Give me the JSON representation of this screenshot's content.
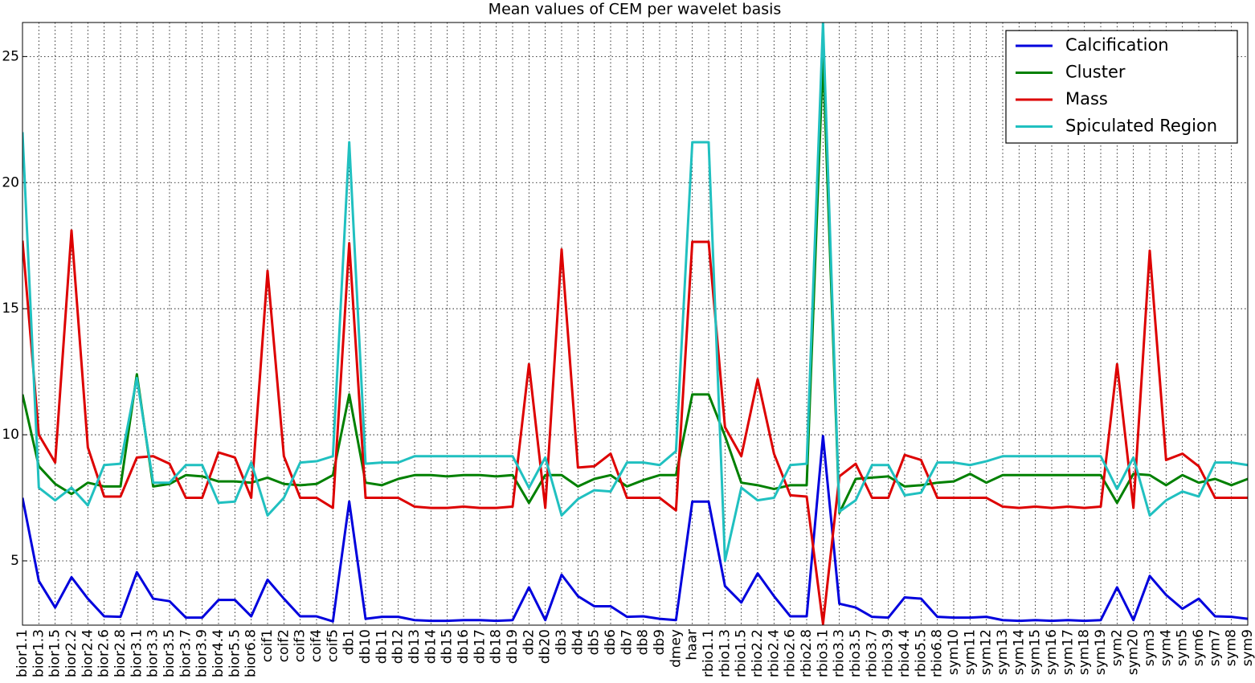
{
  "chart_data": {
    "type": "line",
    "title": "Mean values of CEM per wavelet basis",
    "categories": [
      "bior1.1",
      "bior1.3",
      "bior1.5",
      "bior2.2",
      "bior2.4",
      "bior2.6",
      "bior2.8",
      "bior3.1",
      "bior3.3",
      "bior3.5",
      "bior3.7",
      "bior3.9",
      "bior4.4",
      "bior5.5",
      "bior6.8",
      "coif1",
      "coif2",
      "coif3",
      "coif4",
      "coif5",
      "db1",
      "db10",
      "db11",
      "db12",
      "db13",
      "db14",
      "db15",
      "db16",
      "db17",
      "db18",
      "db19",
      "db2",
      "db20",
      "db3",
      "db4",
      "db5",
      "db6",
      "db7",
      "db8",
      "db9",
      "dmey",
      "haar",
      "rbio1.1",
      "rbio1.3",
      "rbio1.5",
      "rbio2.2",
      "rbio2.4",
      "rbio2.6",
      "rbio2.8",
      "rbio3.1",
      "rbio3.3",
      "rbio3.5",
      "rbio3.7",
      "rbio3.9",
      "rbio4.4",
      "rbio5.5",
      "rbio6.8",
      "sym10",
      "sym11",
      "sym12",
      "sym13",
      "sym14",
      "sym15",
      "sym16",
      "sym17",
      "sym18",
      "sym19",
      "sym2",
      "sym20",
      "sym3",
      "sym4",
      "sym5",
      "sym6",
      "sym7",
      "sym8",
      "sym9"
    ],
    "series": [
      {
        "name": "Calcification",
        "color": "#0000dd",
        "values": [
          7.5,
          4.2,
          3.15,
          4.35,
          3.5,
          2.8,
          2.78,
          4.55,
          3.5,
          3.4,
          2.75,
          2.75,
          3.45,
          3.45,
          2.8,
          4.25,
          3.5,
          2.8,
          2.8,
          2.6,
          7.35,
          2.7,
          2.78,
          2.78,
          2.65,
          2.62,
          2.62,
          2.65,
          2.65,
          2.62,
          2.65,
          3.95,
          2.65,
          4.45,
          3.6,
          3.2,
          3.2,
          2.78,
          2.8,
          2.7,
          2.65,
          7.35,
          7.35,
          4.0,
          3.35,
          4.5,
          3.6,
          2.8,
          2.8,
          9.95,
          3.3,
          3.15,
          2.78,
          2.75,
          3.55,
          3.5,
          2.78,
          2.75,
          2.75,
          2.78,
          2.65,
          2.62,
          2.65,
          2.62,
          2.65,
          2.62,
          2.65,
          3.95,
          2.65,
          4.4,
          3.65,
          3.1,
          3.5,
          2.8,
          2.78,
          2.7
        ]
      },
      {
        "name": "Cluster",
        "color": "#008000",
        "values": [
          11.6,
          8.75,
          8.05,
          7.65,
          8.1,
          7.95,
          7.95,
          12.4,
          7.95,
          8.05,
          8.4,
          8.35,
          8.15,
          8.15,
          8.1,
          8.3,
          8.05,
          8.0,
          8.05,
          8.4,
          11.6,
          8.1,
          8.0,
          8.25,
          8.4,
          8.4,
          8.35,
          8.4,
          8.4,
          8.35,
          8.4,
          7.3,
          8.4,
          8.4,
          7.95,
          8.25,
          8.4,
          7.95,
          8.2,
          8.4,
          8.4,
          11.6,
          11.6,
          9.95,
          8.1,
          8.0,
          7.85,
          8.0,
          8.0,
          25.0,
          6.9,
          8.25,
          8.3,
          8.35,
          7.95,
          8.0,
          8.1,
          8.15,
          8.45,
          8.1,
          8.4,
          8.4,
          8.4,
          8.4,
          8.4,
          8.4,
          8.4,
          7.3,
          8.45,
          8.4,
          8.0,
          8.4,
          8.1,
          8.25,
          8.0,
          8.25
        ]
      },
      {
        "name": "Mass",
        "color": "#dd0000",
        "values": [
          17.7,
          10.0,
          8.9,
          18.1,
          9.5,
          7.55,
          7.55,
          9.1,
          9.15,
          8.85,
          7.5,
          7.5,
          9.3,
          9.1,
          7.5,
          16.5,
          9.15,
          7.5,
          7.5,
          7.1,
          17.6,
          7.5,
          7.5,
          7.5,
          7.15,
          7.1,
          7.1,
          7.15,
          7.1,
          7.1,
          7.15,
          12.8,
          7.1,
          17.35,
          8.7,
          8.75,
          9.25,
          7.5,
          7.5,
          7.5,
          7.0,
          17.65,
          17.65,
          10.3,
          9.15,
          12.2,
          9.25,
          7.6,
          7.55,
          2.5,
          8.35,
          8.85,
          7.5,
          7.5,
          9.2,
          9.0,
          7.5,
          7.5,
          7.5,
          7.5,
          7.15,
          7.1,
          7.15,
          7.1,
          7.15,
          7.1,
          7.15,
          12.8,
          7.1,
          17.3,
          9.0,
          9.25,
          8.75,
          7.5,
          7.5,
          7.5
        ]
      },
      {
        "name": "Spiculated Region",
        "color": "#20c0c0",
        "values": [
          22.0,
          7.9,
          7.4,
          7.9,
          7.2,
          8.8,
          8.85,
          12.25,
          8.1,
          8.1,
          8.8,
          8.8,
          7.3,
          7.35,
          8.9,
          6.8,
          7.5,
          8.9,
          8.95,
          9.15,
          21.6,
          8.85,
          8.9,
          8.9,
          9.15,
          9.15,
          9.15,
          9.15,
          9.15,
          9.15,
          9.15,
          7.9,
          9.1,
          6.8,
          7.45,
          7.8,
          7.75,
          8.9,
          8.9,
          8.8,
          9.35,
          21.6,
          21.6,
          5.0,
          7.9,
          7.4,
          7.5,
          8.8,
          8.85,
          26.35,
          6.95,
          7.4,
          8.8,
          8.8,
          7.6,
          7.7,
          8.9,
          8.9,
          8.8,
          8.95,
          9.15,
          9.15,
          9.15,
          9.15,
          9.15,
          9.15,
          9.15,
          7.85,
          9.1,
          6.8,
          7.4,
          7.75,
          7.55,
          8.9,
          8.9,
          8.8
        ]
      }
    ],
    "ylim": [
      2.45,
      26.35
    ],
    "yticks": [
      5,
      10,
      15,
      20,
      25
    ],
    "grid": true,
    "legend": "upper right"
  }
}
